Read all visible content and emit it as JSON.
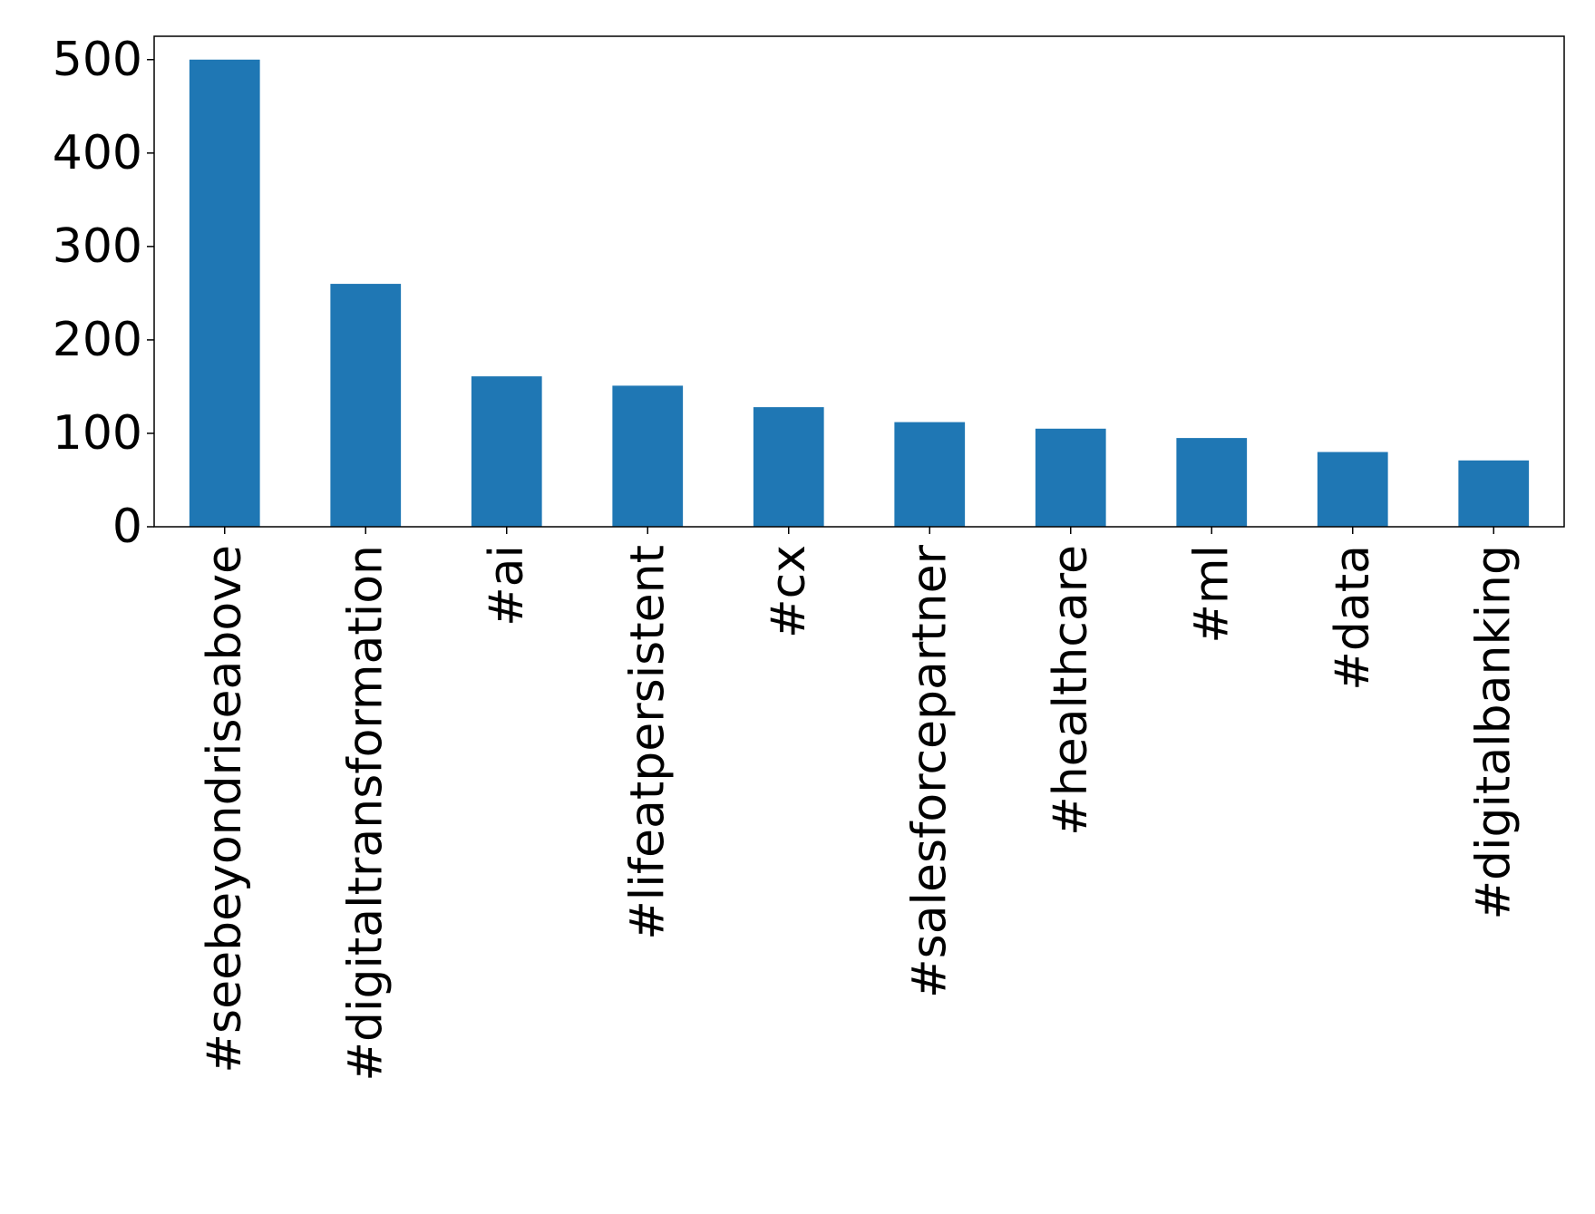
{
  "chart_data": {
    "type": "bar",
    "title": "",
    "xlabel": "",
    "ylabel": "",
    "categories": [
      "#seebeyondriseabove",
      "#digitaltransformation",
      "#ai",
      "#lifeatpersistent",
      "#cx",
      "#salesforcepartner",
      "#healthcare",
      "#ml",
      "#data",
      "#digitalbanking"
    ],
    "values": [
      500,
      260,
      161,
      151,
      128,
      112,
      105,
      95,
      80,
      71
    ],
    "ylim": [
      0,
      525
    ],
    "yticks": [
      0,
      100,
      200,
      300,
      400,
      500
    ],
    "grid": false,
    "bar_color": "#1f77b4"
  }
}
